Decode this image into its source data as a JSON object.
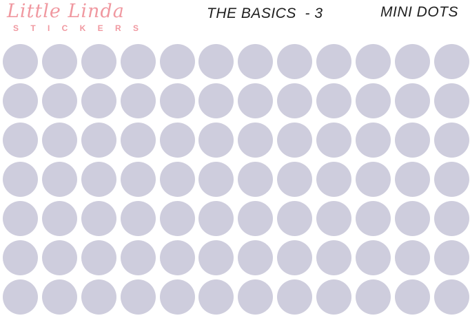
{
  "page": {
    "background_color": "#ffffff"
  },
  "header": {
    "logo": {
      "name": "Little Linda",
      "subtitle": "S T I C K E R S",
      "color": "#f098a0"
    },
    "center_title": "THE BASICS  - 3",
    "right_title": "MINI DOTS",
    "title_color": "#1f1f1f"
  },
  "sticker_sheet": {
    "rows": 7,
    "columns": 12,
    "total_dots": 84,
    "dot_color": "#cecddd"
  }
}
